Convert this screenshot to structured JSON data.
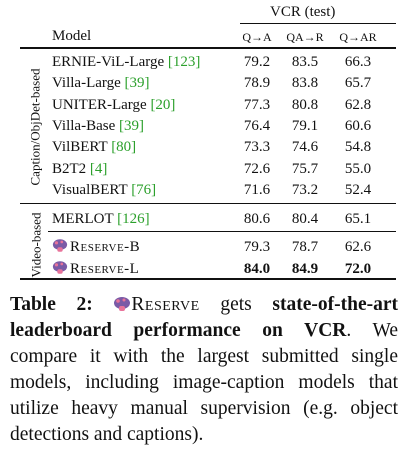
{
  "table": {
    "group_header": "VCR (test)",
    "columns": [
      "Model",
      "Q→A",
      "QA→R",
      "Q→AR"
    ],
    "groups": [
      {
        "label": "Caption/ObjDet-based",
        "rows": [
          {
            "model": "ERNIE-ViL-Large",
            "cite": "[123]",
            "values": [
              "79.2",
              "83.5",
              "66.3"
            ]
          },
          {
            "model": "Villa-Large",
            "cite": "[39]",
            "values": [
              "78.9",
              "83.8",
              "65.7"
            ]
          },
          {
            "model": "UNITER-Large",
            "cite": "[20]",
            "values": [
              "77.3",
              "80.8",
              "62.8"
            ]
          },
          {
            "model": "Villa-Base",
            "cite": "[39]",
            "values": [
              "76.4",
              "79.1",
              "60.6"
            ]
          },
          {
            "model": "VilBERT",
            "cite": "[80]",
            "values": [
              "73.3",
              "74.6",
              "54.8"
            ]
          },
          {
            "model": "B2T2",
            "cite": "[4]",
            "values": [
              "72.6",
              "75.7",
              "55.0"
            ]
          },
          {
            "model": "VisualBERT",
            "cite": "[76]",
            "values": [
              "71.6",
              "73.2",
              "52.4"
            ]
          }
        ]
      },
      {
        "label": "Video-based",
        "rows": [
          {
            "model": "MERLOT",
            "cite": "[126]",
            "values": [
              "80.6",
              "80.4",
              "65.1"
            ]
          },
          {
            "model": "Reserve-B",
            "values": [
              "79.3",
              "78.7",
              "62.6"
            ]
          },
          {
            "model": "Reserve-L",
            "values": [
              "84.0",
              "84.9",
              "72.0"
            ],
            "bold": true
          }
        ]
      }
    ]
  },
  "caption": {
    "label": "Table 2:",
    "name": "Reserve",
    "text1": "gets",
    "bold": "state-of-the-art leaderboard performance on VCR",
    "text2": ". We compare it with the largest submitted single models, including image-caption models that utilize heavy manual supervision (e.g. object detections and captions)."
  }
}
